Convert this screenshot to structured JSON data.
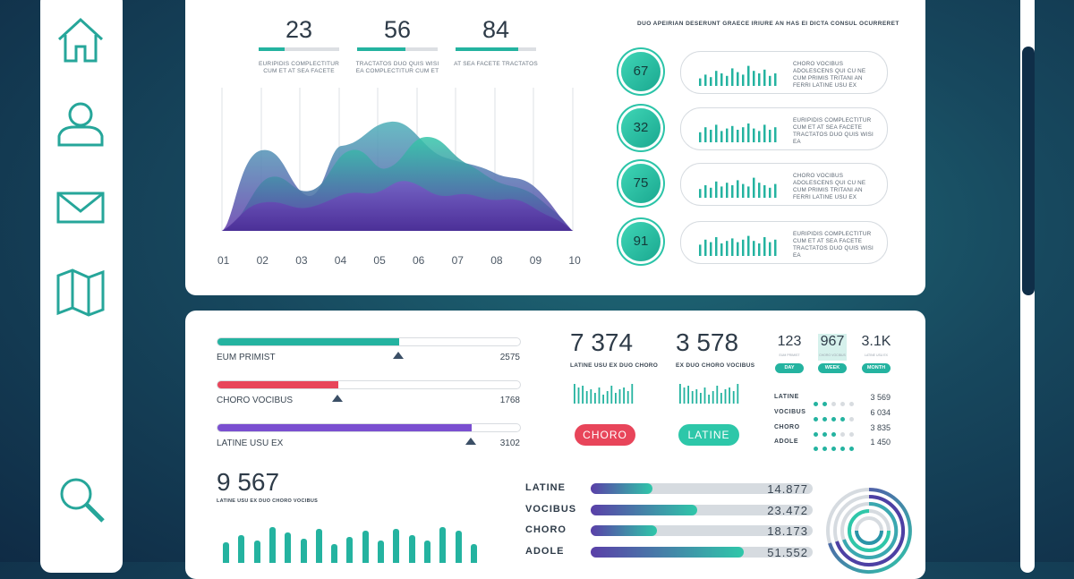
{
  "sidebar": {
    "items": [
      {
        "name": "home-icon"
      },
      {
        "name": "user-icon"
      },
      {
        "name": "mail-icon"
      },
      {
        "name": "map-icon"
      },
      {
        "name": "search-icon"
      }
    ]
  },
  "top_stats": [
    {
      "value": "23",
      "caption": "EURIPIDIS COMPLECTITUR CUM ET AT SEA FACETE",
      "progress": 0.32
    },
    {
      "value": "56",
      "caption": "TRACTATOS DUO QUIS WISI EA COMPLECTITUR CUM ET",
      "progress": 0.6
    },
    {
      "value": "84",
      "caption": "AT SEA FACETE TRACTATOS",
      "progress": 0.78
    }
  ],
  "area_chart": {
    "x_labels": [
      "01",
      "02",
      "03",
      "04",
      "05",
      "06",
      "07",
      "08",
      "09",
      "10"
    ]
  },
  "right_title": "DUO APEIRIAN DESERUNT GRAECE IRIURE AN HAS EI DICTA CONSUL OCURRERET",
  "right_rows": [
    {
      "value": "67",
      "text": "CHORO VOCIBUS ADOLESCENS QUI CU NE CUM PRIMIS TRITANI AN FERRI LATINE USU EX"
    },
    {
      "value": "32",
      "text": "EURIPIDIS COMPLECTITUR CUM ET AT SEA FACETE TRACTATOS DUO QUIS WISI EA"
    },
    {
      "value": "75",
      "text": "CHORO VOCIBUS ADOLESCENS QUI CU NE CUM PRIMIS TRITANI AN FERRI LATINE USU EX"
    },
    {
      "value": "91",
      "text": "EURIPIDIS COMPLECTITUR CUM ET AT SEA FACETE TRACTATOS DUO QUIS WISI EA"
    }
  ],
  "hbars": [
    {
      "label": "EUM PRIMIST",
      "value": "2575",
      "fill": 0.6,
      "color": "#24b3a0",
      "marker": 0.6
    },
    {
      "label": "CHORO VOCIBUS",
      "value": "1768",
      "fill": 0.4,
      "color": "#e8455a",
      "marker": 0.4
    },
    {
      "label": "LATINE USU EX",
      "value": "3102",
      "fill": 0.84,
      "color": "#7a4fd0",
      "marker": 0.84
    }
  ],
  "kpis": [
    {
      "value": "7 374",
      "caption": "LATINE USU EX DUO CHORO",
      "button": "CHORO",
      "button_color": "#e8455a"
    },
    {
      "value": "3 578",
      "caption": "EX DUO CHORO VOCIBUS",
      "button": "LATINE",
      "button_color": "#2dc7a9"
    }
  ],
  "periods": [
    {
      "value": "123",
      "caption": "EUM PRIMIST",
      "button": "DAY"
    },
    {
      "value": "967",
      "caption": "CHORO VOCIBUS",
      "button": "WEEK"
    },
    {
      "value": "3.1K",
      "caption": "LATINE USU EX",
      "button": "MONTH"
    }
  ],
  "dot_rows": [
    {
      "label": "LATINE",
      "on": 2,
      "value": "3 569"
    },
    {
      "label": "VOCIBUS",
      "on": 4,
      "value": "6 034"
    },
    {
      "label": "CHORO",
      "on": 3,
      "value": "3 835"
    },
    {
      "label": "ADOLE",
      "on": 5,
      "value": "1 450"
    }
  ],
  "bottom_kpi": {
    "value": "9 567",
    "caption": "LATINE USU EX DUO CHORO VOCIBUS"
  },
  "bottom_bars": [
    0.55,
    0.75,
    0.6,
    0.95,
    0.8,
    0.65,
    0.9,
    0.5,
    0.7,
    0.85,
    0.6,
    0.9,
    0.75,
    0.6,
    0.95,
    0.85,
    0.5
  ],
  "progress_bars": [
    {
      "label": "LATINE",
      "value": "14.877",
      "fill": 0.28
    },
    {
      "label": "VOCIBUS",
      "value": "23.472",
      "fill": 0.48
    },
    {
      "label": "CHORO",
      "value": "18.173",
      "fill": 0.3
    },
    {
      "label": "ADOLE",
      "value": "51.552",
      "fill": 0.69
    }
  ]
}
